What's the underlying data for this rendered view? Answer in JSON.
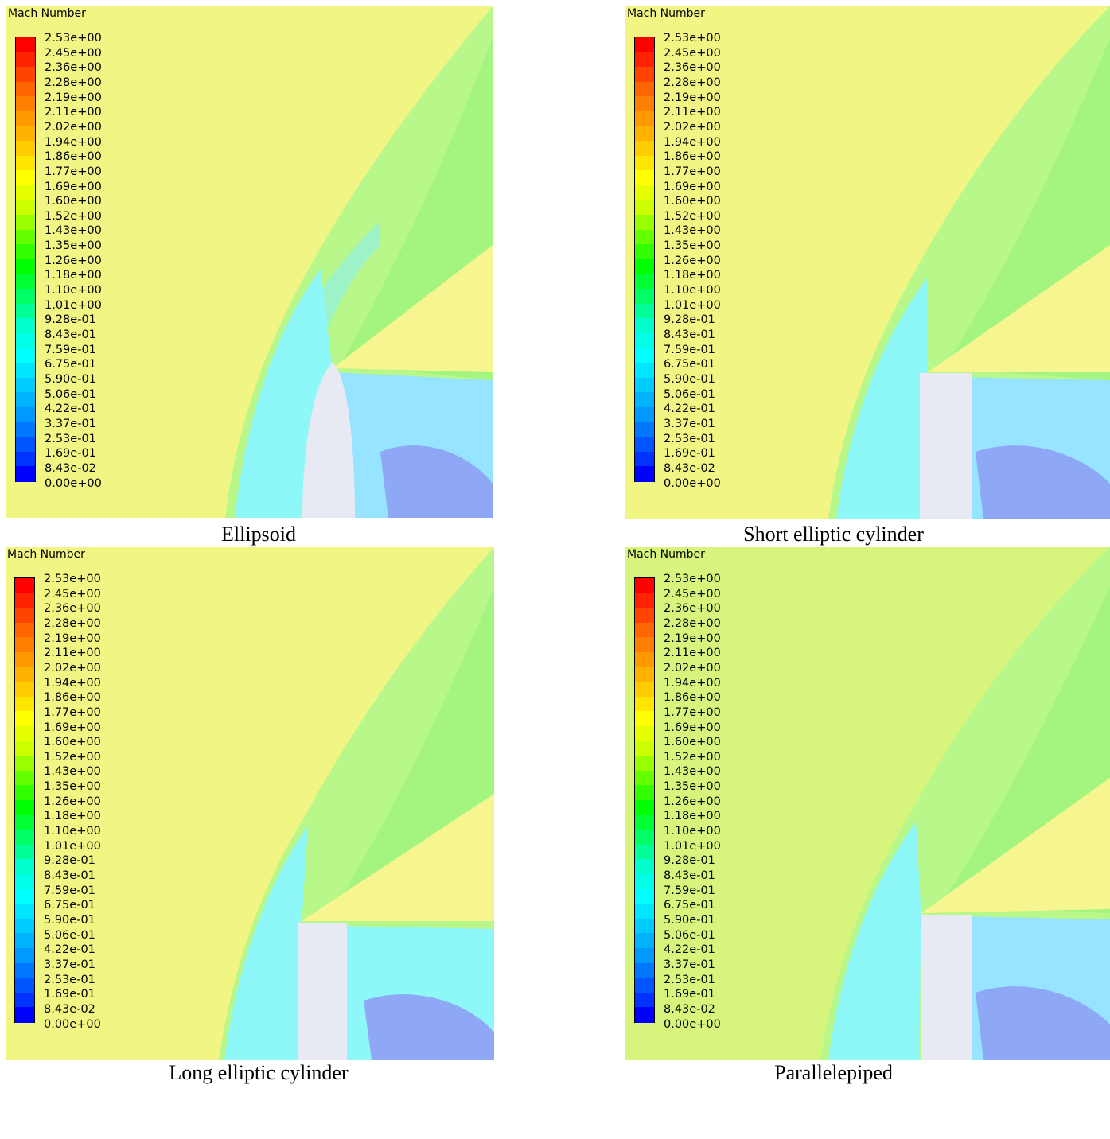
{
  "colorbar": {
    "title": "Mach Number",
    "ticks": [
      "2.53e+00",
      "2.45e+00",
      "2.36e+00",
      "2.28e+00",
      "2.19e+00",
      "2.11e+00",
      "2.02e+00",
      "1.94e+00",
      "1.86e+00",
      "1.77e+00",
      "1.69e+00",
      "1.60e+00",
      "1.52e+00",
      "1.43e+00",
      "1.35e+00",
      "1.26e+00",
      "1.18e+00",
      "1.10e+00",
      "1.01e+00",
      "9.28e-01",
      "8.43e-01",
      "7.59e-01",
      "6.75e-01",
      "5.90e-01",
      "5.06e-01",
      "4.22e-01",
      "3.37e-01",
      "2.53e-01",
      "1.69e-01",
      "8.43e-02",
      "0.00e+00"
    ],
    "colors": [
      "#ff0000",
      "#ff2200",
      "#ff4400",
      "#ff6600",
      "#ff7f00",
      "#ff9900",
      "#ffb300",
      "#ffcc00",
      "#ffe600",
      "#ffff00",
      "#e6ff00",
      "#ccff00",
      "#99ff00",
      "#66ff00",
      "#33ff00",
      "#00ff00",
      "#00ff33",
      "#00ff66",
      "#00ff99",
      "#00ffcc",
      "#00ffe6",
      "#00ffff",
      "#00e6ff",
      "#00ccff",
      "#00b3ff",
      "#0099ff",
      "#0077ff",
      "#0055ff",
      "#0033ff",
      "#0000ff"
    ]
  },
  "field_colors": {
    "freestream": "#f0f583",
    "freestream_alt": "#d7f57d",
    "shock_layer": "#8ef7f7",
    "wake": "#96e4ff",
    "wake_deep": "#8fa8f5",
    "expansion": "#f7f590",
    "band_green": "#a3f57f",
    "band_green2": "#b8f78a",
    "band_teal": "#9ef2c8",
    "body": "#e8eaf3"
  },
  "panels": [
    {
      "caption": "Ellipsoid",
      "body_shape": "ellipsoid",
      "freestream": "freestream"
    },
    {
      "caption": "Short elliptic cylinder",
      "body_shape": "rect",
      "freestream": "freestream"
    },
    {
      "caption": "Long elliptic cylinder",
      "body_shape": "rect",
      "freestream": "freestream"
    },
    {
      "caption": "Parallelepiped",
      "body_shape": "rect",
      "freestream": "freestream_alt"
    }
  ]
}
